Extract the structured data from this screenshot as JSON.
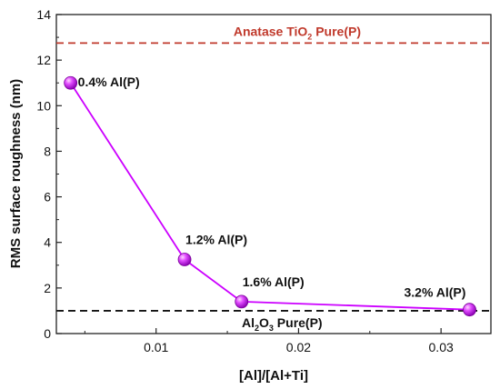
{
  "chart_data": {
    "type": "line",
    "xlabel": "[Al]/[Al+Ti]",
    "ylabel": "RMS surface roughness (nm)",
    "xlim": [
      0.003,
      0.0335
    ],
    "ylim": [
      0,
      14
    ],
    "xticks": [
      0.01,
      0.02,
      0.03
    ],
    "xtick_labels": [
      "0.01",
      "0.02",
      "0.03"
    ],
    "yticks": [
      0,
      2,
      4,
      6,
      8,
      10,
      12,
      14
    ],
    "ytick_labels": [
      "0",
      "2",
      "4",
      "6",
      "8",
      "10",
      "12",
      "14"
    ],
    "grid": false,
    "series": [
      {
        "color": "#cc00ff",
        "marker": "circle",
        "x": [
          0.004,
          0.012,
          0.016,
          0.032
        ],
        "y": [
          11.0,
          3.25,
          1.4,
          1.05
        ],
        "labels": [
          "0.4% Al(P)",
          "1.2% Al(P)",
          "1.6% Al(P)",
          "3.2% Al(P)"
        ]
      }
    ],
    "reference_lines": [
      {
        "y": 12.75,
        "color": "#c0392b",
        "style": "dashed",
        "label_main": "Anatase TiO",
        "label_sub": "2",
        "label_tail": " Pure(P)"
      },
      {
        "y": 1.0,
        "color": "#111111",
        "style": "dashed",
        "label_main": "Al",
        "label_sub": "2",
        "label_mid": "O",
        "label_sub2": "3",
        "label_tail": " Pure(P)"
      }
    ]
  }
}
